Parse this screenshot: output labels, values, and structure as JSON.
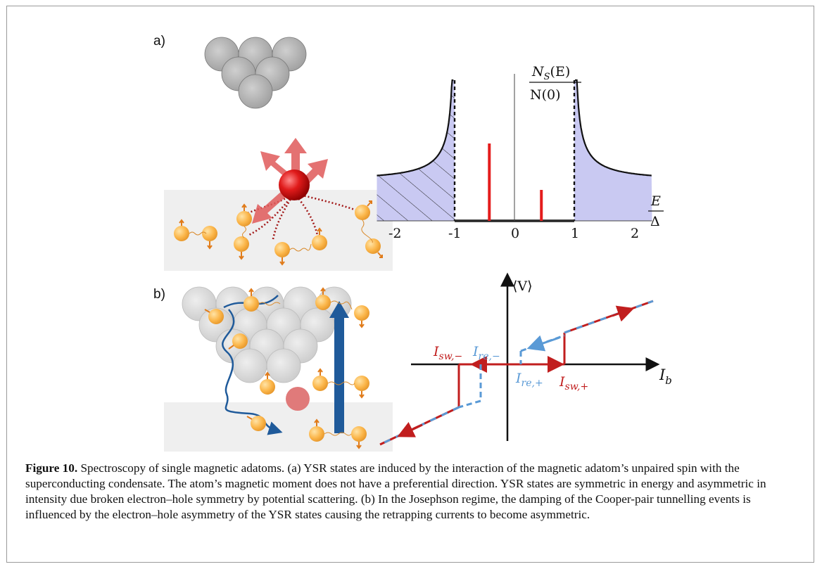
{
  "panels": {
    "a": "a)",
    "b": "b)"
  },
  "dos_plot": {
    "y_label_num": "N",
    "y_label_num_sub": "S",
    "y_label_num_arg": "(E)",
    "y_label_den": "N(0)",
    "x_label_num": "E",
    "x_label_den": "Δ",
    "ticks": [
      "-2",
      "-1",
      "0",
      "1",
      "2"
    ],
    "fill_color": "#c9c9f2",
    "peak_color": "#e41c1c",
    "ysr_peaks": [
      {
        "E": -0.42,
        "height": 0.55
      },
      {
        "E": 0.45,
        "height": 0.22
      }
    ]
  },
  "iv_plot": {
    "y_label": "⟨V⟩",
    "x_label": "I",
    "x_label_sub": "b",
    "labels": {
      "isw_minus": {
        "main": "I",
        "sub": "sw,−"
      },
      "ire_minus": {
        "main": "I",
        "sub": "re,−"
      },
      "ire_plus": {
        "main": "I",
        "sub": "re,+"
      },
      "isw_plus": {
        "main": "I",
        "sub": "sw,+"
      }
    },
    "sweep_color": "#c11e1e",
    "retrap_color": "#5a9ad6"
  },
  "caption": {
    "label": "Figure 10.",
    "text": " Spectroscopy of single magnetic adatoms. (a) YSR states are induced by the interaction of the magnetic adatom’s unpaired spin with the superconducting condensate. The atom’s magnetic moment does not have a preferential direction. YSR states are symmetric in energy and asymmetric in intensity due broken electron–hole symmetry by potential scattering. (b) In the Josephson regime, the damping of the Cooper-pair tunnelling events is influenced by the electron–hole asymmetry of the YSR states causing the retrapping currents to become asymmetric."
  }
}
